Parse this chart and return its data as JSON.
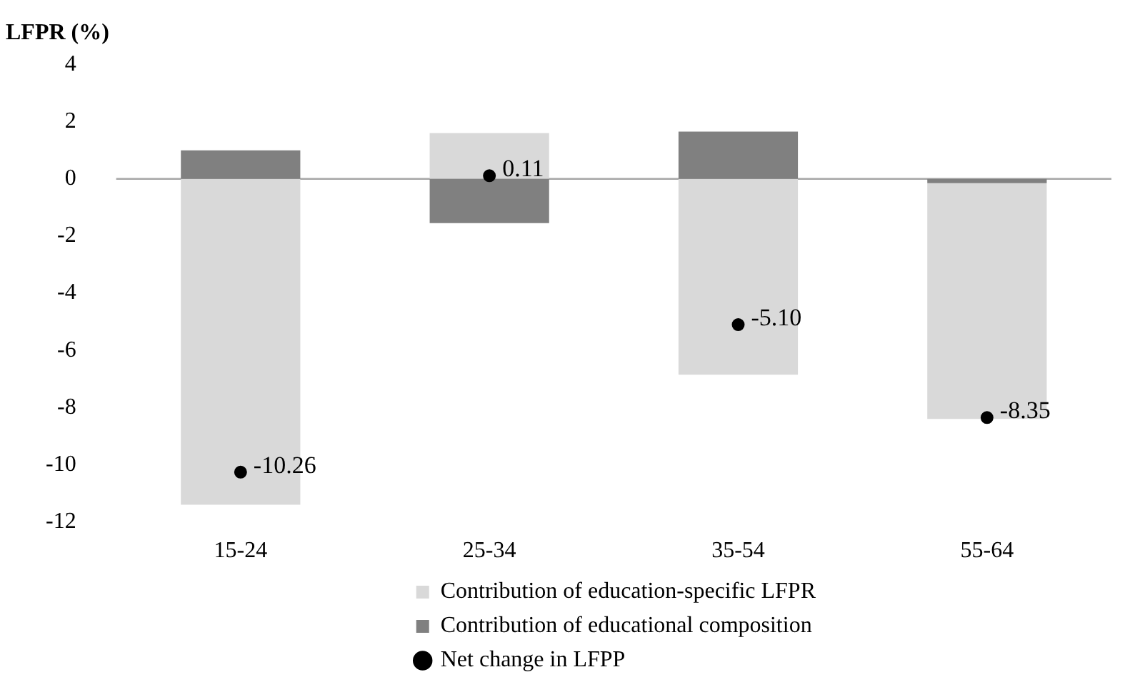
{
  "chart_data": {
    "type": "bar",
    "stacked": true,
    "ylabel": "LFPR (%)",
    "categories": [
      "15-24",
      "25-34",
      "35-54",
      "55-64"
    ],
    "series": [
      {
        "name": "Contribution of educational composition",
        "color": "#808080",
        "values": [
          1.0,
          -1.55,
          1.65,
          -0.15
        ]
      },
      {
        "name": "Contribution of education-specific LFPR",
        "color": "#d9d9d9",
        "values": [
          -11.4,
          1.6,
          -6.85,
          -8.25
        ]
      },
      {
        "name": "Net change in LFPP",
        "type": "scatter",
        "color": "#000000",
        "marker": "circle",
        "x": [
          "15-24",
          "25-34",
          "35-54",
          "55-64"
        ],
        "values": [
          -10.26,
          0.11,
          -5.1,
          -8.35
        ],
        "value_labels": [
          "-10.26",
          "0.11",
          "-5.10",
          "-8.35"
        ]
      }
    ],
    "ylim": [
      -12,
      4
    ],
    "yticks": [
      -12,
      -10,
      -8,
      -6,
      -4,
      -2,
      0,
      2,
      4
    ],
    "grid": false,
    "ref_lines": [
      {
        "axis": "y",
        "value": 0,
        "color": "#a6a6a6"
      }
    ],
    "legend": "bottom"
  }
}
